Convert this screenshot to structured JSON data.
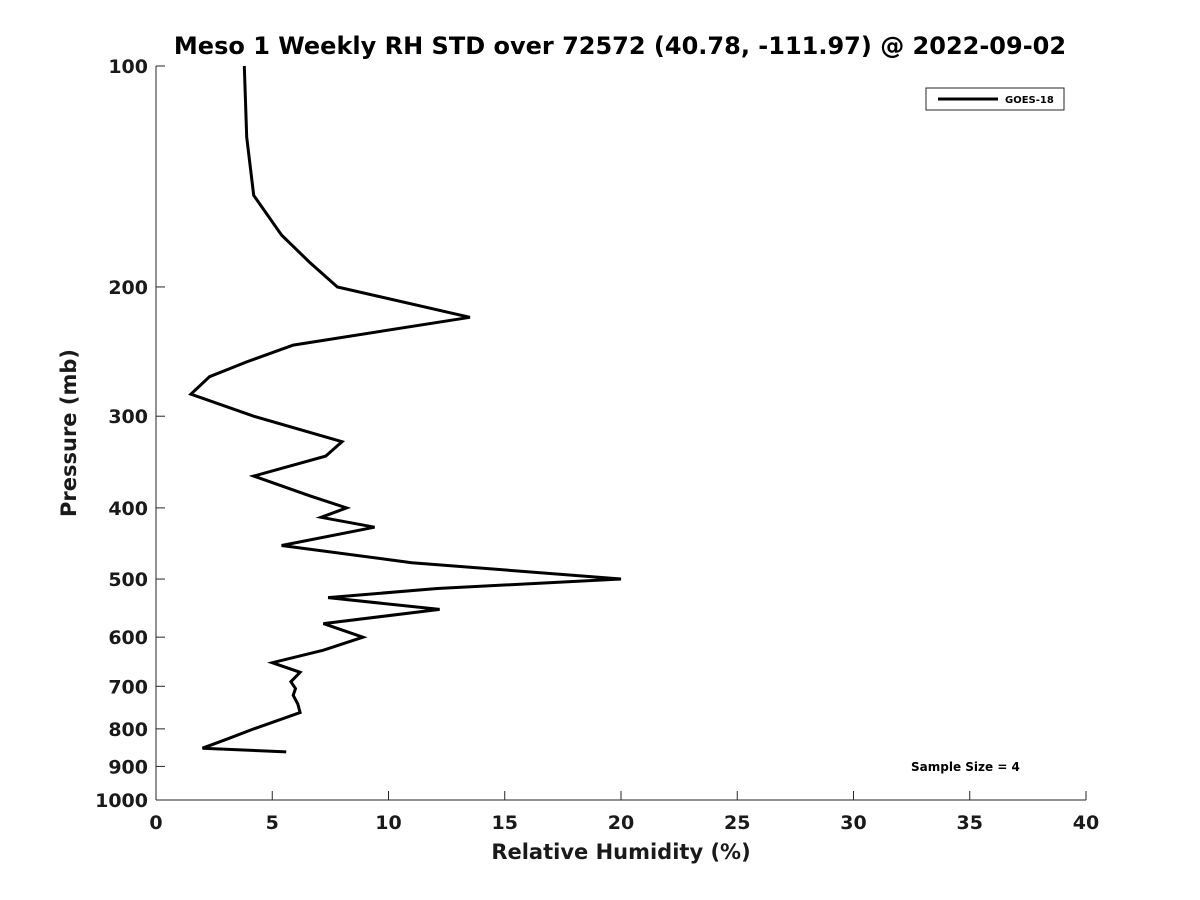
{
  "chart_data": {
    "type": "line",
    "title": "Meso 1 Weekly RH STD over 72572 (40.78, -111.97) @ 2022-09-02",
    "xlabel": "Relative Humidity (%)",
    "ylabel": "Pressure (mb)",
    "xlim": [
      0,
      40
    ],
    "ylim": [
      100,
      1000
    ],
    "y_scale": "log",
    "y_reversed": true,
    "x_ticks": [
      0,
      5,
      10,
      15,
      20,
      25,
      30,
      35,
      40
    ],
    "y_ticks": [
      100,
      200,
      300,
      400,
      500,
      600,
      700,
      800,
      900,
      1000
    ],
    "grid": false,
    "legend_position": "top-right",
    "series": [
      {
        "name": "GOES-18",
        "color": "#000000",
        "points": [
          {
            "x": 3.8,
            "y": 100
          },
          {
            "x": 3.9,
            "y": 125
          },
          {
            "x": 4.2,
            "y": 150
          },
          {
            "x": 5.4,
            "y": 170
          },
          {
            "x": 6.6,
            "y": 185
          },
          {
            "x": 7.8,
            "y": 200
          },
          {
            "x": 13.5,
            "y": 220
          },
          {
            "x": 5.9,
            "y": 240
          },
          {
            "x": 3.9,
            "y": 253
          },
          {
            "x": 2.3,
            "y": 265
          },
          {
            "x": 1.5,
            "y": 280
          },
          {
            "x": 4.2,
            "y": 300
          },
          {
            "x": 8.0,
            "y": 325
          },
          {
            "x": 7.3,
            "y": 340
          },
          {
            "x": 4.2,
            "y": 362
          },
          {
            "x": 6.6,
            "y": 385
          },
          {
            "x": 8.2,
            "y": 400
          },
          {
            "x": 7.1,
            "y": 412
          },
          {
            "x": 9.4,
            "y": 425
          },
          {
            "x": 5.4,
            "y": 450
          },
          {
            "x": 11.0,
            "y": 475
          },
          {
            "x": 20.0,
            "y": 500
          },
          {
            "x": 12.1,
            "y": 515
          },
          {
            "x": 7.4,
            "y": 530
          },
          {
            "x": 12.2,
            "y": 550
          },
          {
            "x": 7.2,
            "y": 575
          },
          {
            "x": 8.9,
            "y": 600
          },
          {
            "x": 7.2,
            "y": 625
          },
          {
            "x": 5.0,
            "y": 650
          },
          {
            "x": 6.2,
            "y": 670
          },
          {
            "x": 5.8,
            "y": 690
          },
          {
            "x": 6.0,
            "y": 705
          },
          {
            "x": 5.9,
            "y": 720
          },
          {
            "x": 6.1,
            "y": 740
          },
          {
            "x": 6.2,
            "y": 760
          },
          {
            "x": 4.2,
            "y": 800
          },
          {
            "x": 3.1,
            "y": 825
          },
          {
            "x": 2.0,
            "y": 850
          },
          {
            "x": 5.6,
            "y": 860
          }
        ]
      }
    ],
    "annotations": [
      {
        "text": "Sample Size = 4",
        "position": "bottom-right"
      }
    ]
  }
}
